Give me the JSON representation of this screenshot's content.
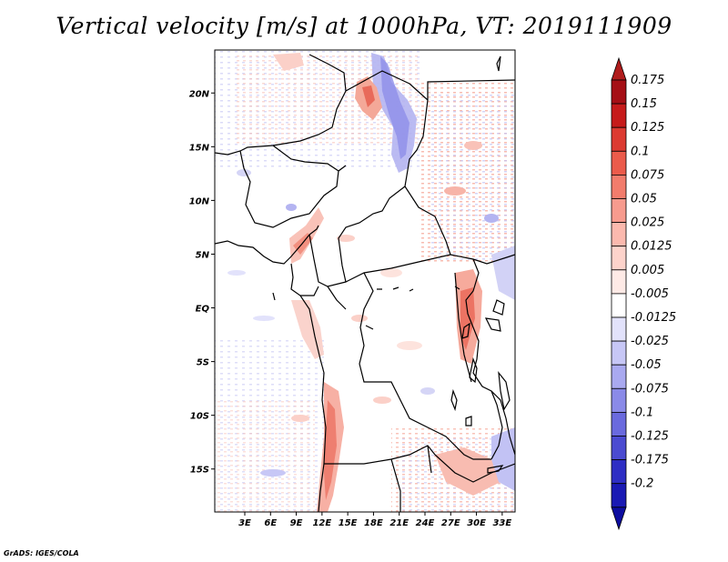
{
  "title": "Vertical velocity [m/s] at 1000hPa, VT: 2019111909",
  "credit": "GrADS: IGES/COLA",
  "map": {
    "region": "Central Africa",
    "lat_range": [
      -19,
      24
    ],
    "lon_range": [
      -0.5,
      34.5
    ],
    "lat_labels": [
      {
        "lat": 20,
        "text": "20N"
      },
      {
        "lat": 15,
        "text": "15N"
      },
      {
        "lat": 10,
        "text": "10N"
      },
      {
        "lat": 5,
        "text": "5N"
      },
      {
        "lat": 0,
        "text": "EQ"
      },
      {
        "lat": -5,
        "text": "5S"
      },
      {
        "lat": -10,
        "text": "10S"
      },
      {
        "lat": -15,
        "text": "15S"
      }
    ],
    "lon_labels": [
      {
        "lon": 3,
        "text": "3E"
      },
      {
        "lon": 6,
        "text": "6E"
      },
      {
        "lon": 9,
        "text": "9E"
      },
      {
        "lon": 12,
        "text": "12E"
      },
      {
        "lon": 15,
        "text": "15E"
      },
      {
        "lon": 18,
        "text": "18E"
      },
      {
        "lon": 21,
        "text": "21E"
      },
      {
        "lon": 24,
        "text": "24E"
      },
      {
        "lon": 27,
        "text": "27E"
      },
      {
        "lon": 30,
        "text": "30E"
      },
      {
        "lon": 33,
        "text": "33E"
      }
    ]
  },
  "colorbar": {
    "levels": [
      {
        "label": "0.175",
        "color": "#a50f15"
      },
      {
        "label": "0.15",
        "color": "#c61b1b"
      },
      {
        "label": "0.125",
        "color": "#dc3a31"
      },
      {
        "label": "0.1",
        "color": "#eb5b4b"
      },
      {
        "label": "0.075",
        "color": "#f27c6c"
      },
      {
        "label": "0.05",
        "color": "#f79b8e"
      },
      {
        "label": "0.025",
        "color": "#fbb9ae"
      },
      {
        "label": "0.0125",
        "color": "#fdd3cb"
      },
      {
        "label": "0.005",
        "color": "#feeae6"
      },
      {
        "label": "-0.005",
        "color": "#ffffff"
      },
      {
        "label": "-0.0125",
        "color": "#e2e2fb"
      },
      {
        "label": "-0.025",
        "color": "#c7c7f6"
      },
      {
        "label": "-0.05",
        "color": "#a9a9f0"
      },
      {
        "label": "-0.075",
        "color": "#8a8ae8"
      },
      {
        "label": "-0.1",
        "color": "#6a6ade"
      },
      {
        "label": "-0.125",
        "color": "#4b4bd1"
      },
      {
        "label": "-0.175",
        "color": "#2e2ec4"
      },
      {
        "label": "-0.2",
        "color": "#1a1ab4"
      }
    ],
    "top_color": "#b01c1c",
    "bottom_color": "#0d0da0"
  },
  "field_colors": {
    "pos_light": "#fbd0c8",
    "pos_mid": "#f4a090",
    "neg_light": "#d5d5f6",
    "neg_mid": "#a8a8ee"
  }
}
